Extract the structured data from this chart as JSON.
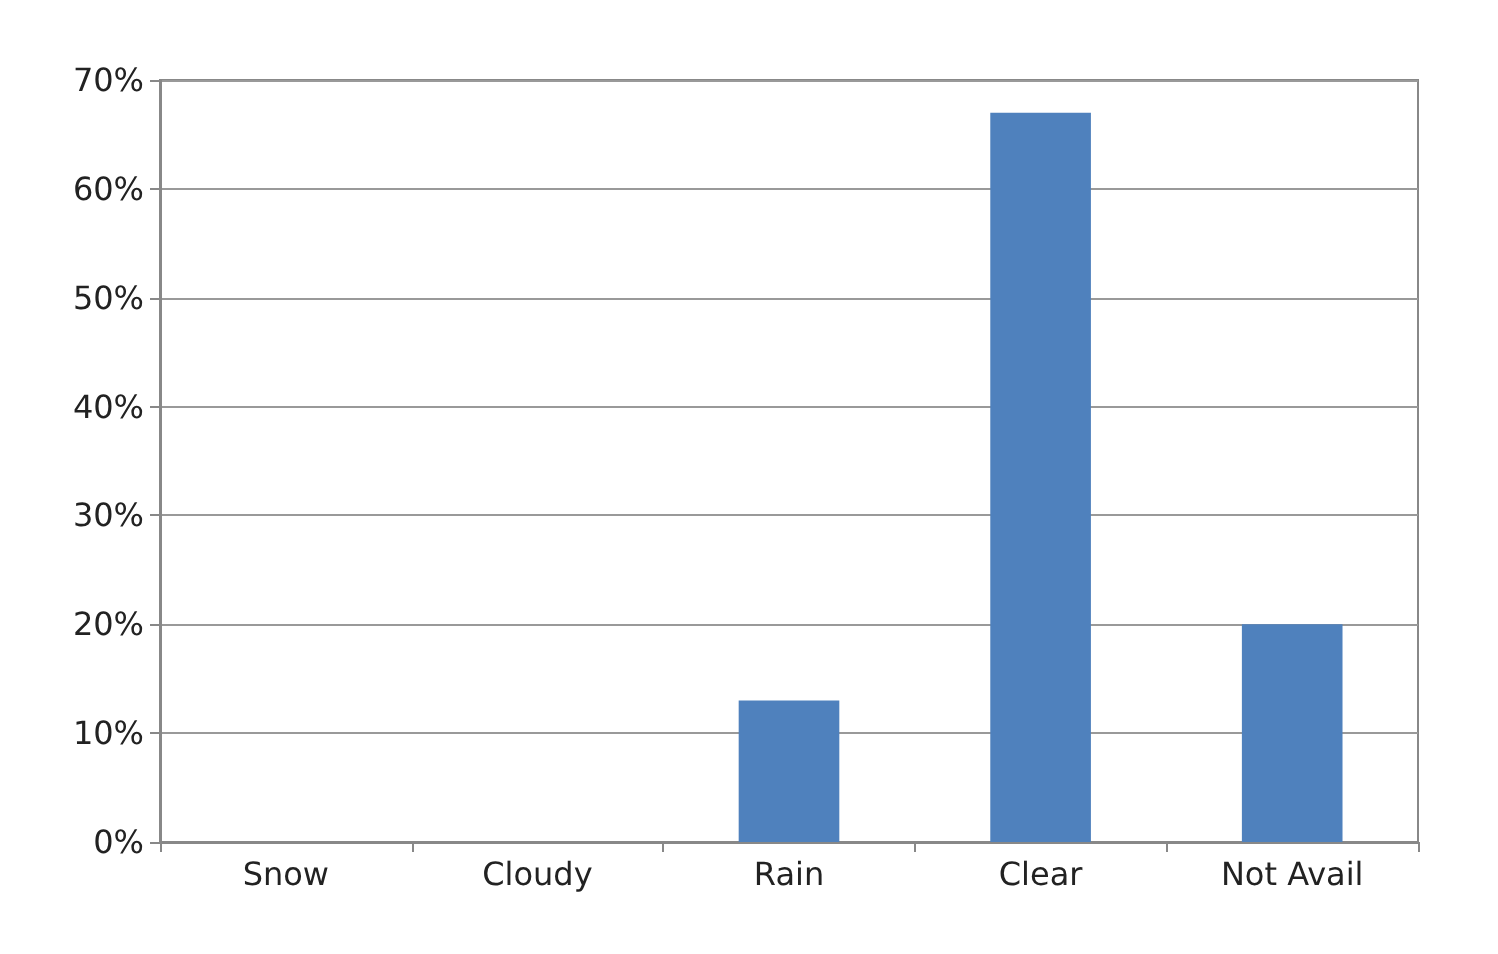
{
  "chart_data": {
    "type": "bar",
    "categories": [
      "Snow",
      "Cloudy",
      "Rain",
      "Clear",
      "Not Avail"
    ],
    "values": [
      0,
      0,
      13,
      67,
      20
    ],
    "color": "#4f81bd",
    "ylim": [
      0,
      70
    ],
    "yticks": [
      {
        "value": 0,
        "label": "0%"
      },
      {
        "value": 10,
        "label": "10%"
      },
      {
        "value": 20,
        "label": "20%"
      },
      {
        "value": 30,
        "label": "30%"
      },
      {
        "value": 40,
        "label": "40%"
      },
      {
        "value": 50,
        "label": "50%"
      },
      {
        "value": 60,
        "label": "60%"
      },
      {
        "value": 70,
        "label": "70%"
      }
    ],
    "grid": true
  }
}
